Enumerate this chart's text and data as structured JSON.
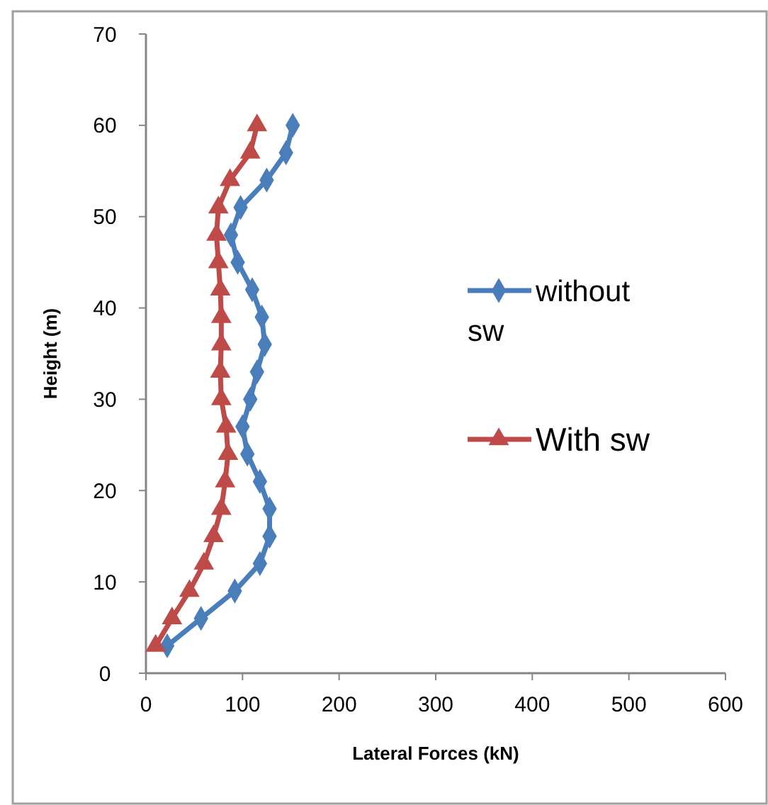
{
  "chart_data": {
    "type": "line",
    "xlabel": "Lateral Forces (kN)",
    "ylabel": "Height (m)",
    "xlim": [
      0,
      600
    ],
    "xticks": [
      0,
      100,
      200,
      300,
      400,
      500,
      600
    ],
    "ylim": [
      0,
      70
    ],
    "yticks": [
      0,
      10,
      20,
      30,
      40,
      50,
      60,
      70
    ],
    "grid": false,
    "legend": "right",
    "line_style": "solid",
    "series": [
      {
        "name": "without sw",
        "color": "#4a7ebb",
        "marker": "diamond",
        "x": [
          22,
          57,
          92,
          118,
          128,
          128,
          118,
          105,
          100,
          108,
          115,
          123,
          120,
          110,
          95,
          88,
          98,
          125,
          145,
          152
        ],
        "values": [
          3,
          6,
          9,
          12,
          15,
          18,
          21,
          24,
          27,
          30,
          33,
          36,
          39,
          42,
          45,
          48,
          51,
          54,
          57,
          60
        ]
      },
      {
        "name": "With sw",
        "color": "#be4b48",
        "marker": "triangle",
        "x": [
          10,
          27,
          45,
          60,
          70,
          78,
          82,
          85,
          83,
          78,
          77,
          78,
          78,
          77,
          75,
          73,
          75,
          87,
          108,
          115
        ],
        "values": [
          3,
          6,
          9,
          12,
          15,
          18,
          21,
          24,
          27,
          30,
          33,
          36,
          39,
          42,
          45,
          48,
          51,
          54,
          57,
          60
        ]
      }
    ]
  }
}
